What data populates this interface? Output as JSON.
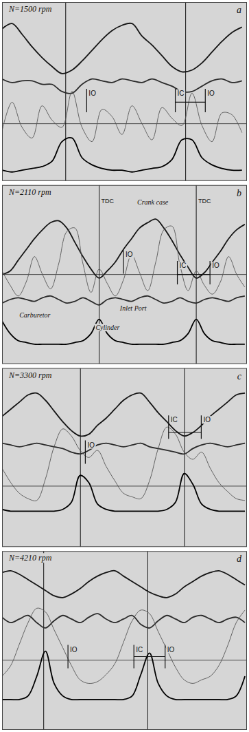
{
  "chart_data": [
    {
      "type": "line",
      "title": "N=1500 rpm",
      "panel": "a",
      "tick_labels": false,
      "xlim": [
        0,
        735
      ],
      "ylim": [
        0,
        100
      ],
      "x": [
        0,
        30,
        60,
        90,
        120,
        150,
        180,
        210,
        240,
        270,
        300,
        330,
        360,
        390,
        420,
        450,
        480,
        510,
        540,
        570,
        600,
        630,
        660,
        690,
        720
      ],
      "hline": 32,
      "vlines": [
        191,
        551
      ],
      "markers": [
        {
          "text": "IO",
          "x": 254,
          "y": 50
        },
        {
          "text": "IC",
          "x": 520,
          "y": 50
        },
        {
          "text": "IO",
          "x": 610,
          "y": 50
        }
      ],
      "brackets": [
        {
          "from": 520,
          "to": 610,
          "y": 44
        }
      ],
      "series": [
        {
          "color": "#151515",
          "line_style": "thick",
          "values": [
            85,
            88,
            82,
            75,
            69,
            64,
            60,
            62,
            67,
            73,
            79,
            84,
            87,
            88,
            81,
            76,
            70,
            64,
            61,
            62,
            66,
            72,
            78,
            83,
            86
          ]
        },
        {
          "color": "#2b2b2b",
          "line_style": "thick",
          "values": [
            57,
            55,
            56,
            56,
            54,
            54,
            50,
            49,
            54,
            57,
            56,
            55,
            57,
            56,
            55,
            57,
            55,
            53,
            50,
            50,
            53,
            56,
            57,
            55,
            56
          ]
        },
        {
          "color": "#555555",
          "line_style": "thin",
          "values": [
            28,
            44,
            30,
            24,
            42,
            34,
            30,
            50,
            30,
            22,
            40,
            36,
            26,
            42,
            32,
            23,
            41,
            35,
            31,
            49,
            31,
            22,
            38,
            37,
            27
          ]
        },
        {
          "color": "#000000",
          "line_style": "thick",
          "values": [
            6,
            5,
            6,
            7,
            8,
            11,
            22,
            24,
            13,
            9,
            7,
            6,
            6,
            5,
            6,
            7,
            8,
            12,
            23,
            23,
            13,
            9,
            7,
            6,
            6
          ]
        }
      ]
    },
    {
      "type": "line",
      "title": "N=2110 rpm",
      "panel": "b",
      "tick_labels": false,
      "xlim": [
        0,
        908
      ],
      "ylim": [
        0,
        100
      ],
      "x": [
        0,
        30,
        60,
        90,
        120,
        150,
        180,
        210,
        240,
        270,
        300,
        330,
        360,
        390,
        420,
        450,
        480,
        510,
        540,
        570,
        600,
        630,
        660,
        690,
        720,
        750,
        780,
        810,
        840,
        870,
        900
      ],
      "hline": 50,
      "vlines": [
        {
          "value": 360,
          "label": "TDC"
        },
        {
          "value": 720,
          "label": "TDC"
        }
      ],
      "markers": [
        {
          "text": "IO",
          "x": 450,
          "y": 62
        },
        {
          "text": "IC",
          "x": 650,
          "y": 56
        },
        {
          "text": "IO",
          "x": 771,
          "y": 56
        }
      ],
      "brackets": [
        {
          "from": 650,
          "to": 771,
          "y": 50
        }
      ],
      "annotations": [
        {
          "text": "Crank case",
          "x": 501,
          "y": 89
        },
        {
          "text": "Inlet Port",
          "x": 437,
          "y": 30
        },
        {
          "text": "Carburetor",
          "x": 64,
          "y": 26
        },
        {
          "text": "Cylinder",
          "x": 347,
          "y": 19
        }
      ],
      "series": [
        {
          "color": "#151515",
          "line_style": "thick",
          "values": [
            50,
            52,
            58,
            64,
            70,
            75,
            79,
            80,
            76,
            68,
            60,
            53,
            48,
            52,
            57,
            64,
            70,
            76,
            79,
            81,
            76,
            69,
            61,
            54,
            48,
            51,
            57,
            63,
            70,
            75,
            78
          ]
        },
        {
          "color": "#555555",
          "line_style": "thin",
          "values": [
            52,
            44,
            38,
            46,
            60,
            50,
            42,
            56,
            74,
            76,
            56,
            40,
            53,
            45,
            38,
            47,
            61,
            51,
            41,
            57,
            75,
            77,
            55,
            41,
            52,
            44,
            39,
            46,
            60,
            50,
            43
          ]
        },
        {
          "color": "#2b2b2b",
          "line_style": "thick",
          "values": [
            34,
            36,
            37,
            36,
            35,
            37,
            38,
            36,
            34,
            35,
            37,
            35,
            33,
            36,
            37,
            36,
            35,
            37,
            38,
            36,
            34,
            35,
            37,
            35,
            34,
            36,
            37,
            36,
            35,
            37,
            38
          ]
        },
        {
          "color": "#000000",
          "line_style": "thick",
          "values": [
            24,
            17,
            13,
            12,
            11,
            11,
            11,
            11,
            11,
            12,
            13,
            17,
            25,
            17,
            13,
            12,
            11,
            11,
            11,
            11,
            11,
            12,
            13,
            17,
            25,
            17,
            13,
            12,
            11,
            11,
            11
          ]
        }
      ]
    },
    {
      "type": "line",
      "title": "N=3300 rpm",
      "panel": "c",
      "tick_labels": false,
      "xlim": [
        0,
        847
      ],
      "ylim": [
        0,
        100
      ],
      "x": [
        0,
        30,
        60,
        90,
        120,
        150,
        180,
        210,
        240,
        270,
        300,
        330,
        360,
        390,
        420,
        450,
        480,
        510,
        540,
        570,
        600,
        630,
        660,
        690,
        720,
        750,
        780,
        810,
        840
      ],
      "hline": 34,
      "vlines": [
        271,
        631
      ],
      "markers": [
        {
          "text": "IO",
          "x": 288,
          "y": 58
        },
        {
          "text": "IC",
          "x": 576,
          "y": 72
        },
        {
          "text": "IO",
          "x": 689,
          "y": 72
        }
      ],
      "brackets": [
        {
          "from": 576,
          "to": 689,
          "y": 64
        }
      ],
      "series": [
        {
          "color": "#151515",
          "line_style": "thick",
          "values": [
            73,
            77,
            81,
            85,
            86,
            82,
            76,
            70,
            65,
            62,
            63,
            68,
            72,
            77,
            82,
            85,
            86,
            81,
            75,
            70,
            65,
            62,
            64,
            68,
            73,
            77,
            81,
            85,
            86
          ]
        },
        {
          "color": "#2b2b2b",
          "line_style": "thick",
          "values": [
            58,
            57,
            56,
            57,
            58,
            57,
            56,
            55,
            53,
            52,
            54,
            57,
            58,
            57,
            56,
            57,
            58,
            56,
            55,
            54,
            53,
            52,
            55,
            57,
            58,
            57,
            56,
            57,
            58
          ]
        },
        {
          "color": "#555555",
          "line_style": "thin",
          "values": [
            44,
            36,
            30,
            27,
            26,
            38,
            56,
            66,
            62,
            54,
            50,
            54,
            45,
            37,
            30,
            28,
            27,
            37,
            55,
            67,
            63,
            53,
            49,
            53,
            44,
            36,
            31,
            27,
            26
          ]
        },
        {
          "color": "#000000",
          "line_style": "thick",
          "values": [
            21,
            20,
            20,
            20,
            20,
            20,
            20,
            21,
            25,
            40,
            36,
            24,
            21,
            20,
            20,
            20,
            20,
            20,
            20,
            21,
            25,
            41,
            35,
            24,
            21,
            20,
            20,
            20,
            20
          ]
        }
      ]
    },
    {
      "type": "line",
      "title": "N=4210 rpm",
      "panel": "d",
      "tick_labels": false,
      "xlim": [
        0,
        847
      ],
      "ylim": [
        0,
        100
      ],
      "x": [
        0,
        30,
        60,
        90,
        120,
        150,
        180,
        210,
        240,
        270,
        300,
        330,
        360,
        390,
        420,
        450,
        480,
        510,
        540,
        570,
        600,
        630,
        660,
        690,
        720,
        750,
        780,
        810,
        840
      ],
      "hline": 39,
      "vlines": [
        144,
        504
      ],
      "markers": [
        {
          "text": "IO",
          "x": 228,
          "y": 46
        },
        {
          "text": "IC",
          "x": 456,
          "y": 46
        },
        {
          "text": "IO",
          "x": 564,
          "y": 46
        }
      ],
      "brackets": [
        {
          "from": 456,
          "to": 564,
          "y": 41
        }
      ],
      "series": [
        {
          "color": "#151515",
          "line_style": "thick",
          "values": [
            88,
            89,
            87,
            84,
            81,
            78,
            75,
            74,
            76,
            79,
            83,
            86,
            88,
            89,
            86,
            83,
            80,
            77,
            75,
            74,
            76,
            80,
            83,
            86,
            88,
            89,
            87,
            84,
            81
          ]
        },
        {
          "color": "#2b2b2b",
          "line_style": "thick",
          "values": [
            63,
            60,
            62,
            64,
            60,
            57,
            61,
            64,
            62,
            60,
            63,
            65,
            62,
            60,
            62,
            64,
            59,
            57,
            61,
            64,
            62,
            60,
            63,
            64,
            62,
            60,
            62,
            63,
            60
          ]
        },
        {
          "color": "#555555",
          "line_style": "thin",
          "values": [
            30,
            36,
            48,
            60,
            68,
            66,
            56,
            46,
            36,
            28,
            26,
            27,
            31,
            37,
            49,
            61,
            67,
            65,
            55,
            45,
            35,
            28,
            26,
            28,
            30,
            36,
            47,
            60,
            67
          ]
        },
        {
          "color": "#000000",
          "line_style": "thick",
          "values": [
            17,
            17,
            17,
            19,
            30,
            44,
            26,
            19,
            17,
            17,
            17,
            17,
            17,
            17,
            17,
            19,
            31,
            43,
            26,
            19,
            17,
            17,
            17,
            17,
            17,
            17,
            17,
            19,
            30
          ]
        }
      ]
    }
  ]
}
